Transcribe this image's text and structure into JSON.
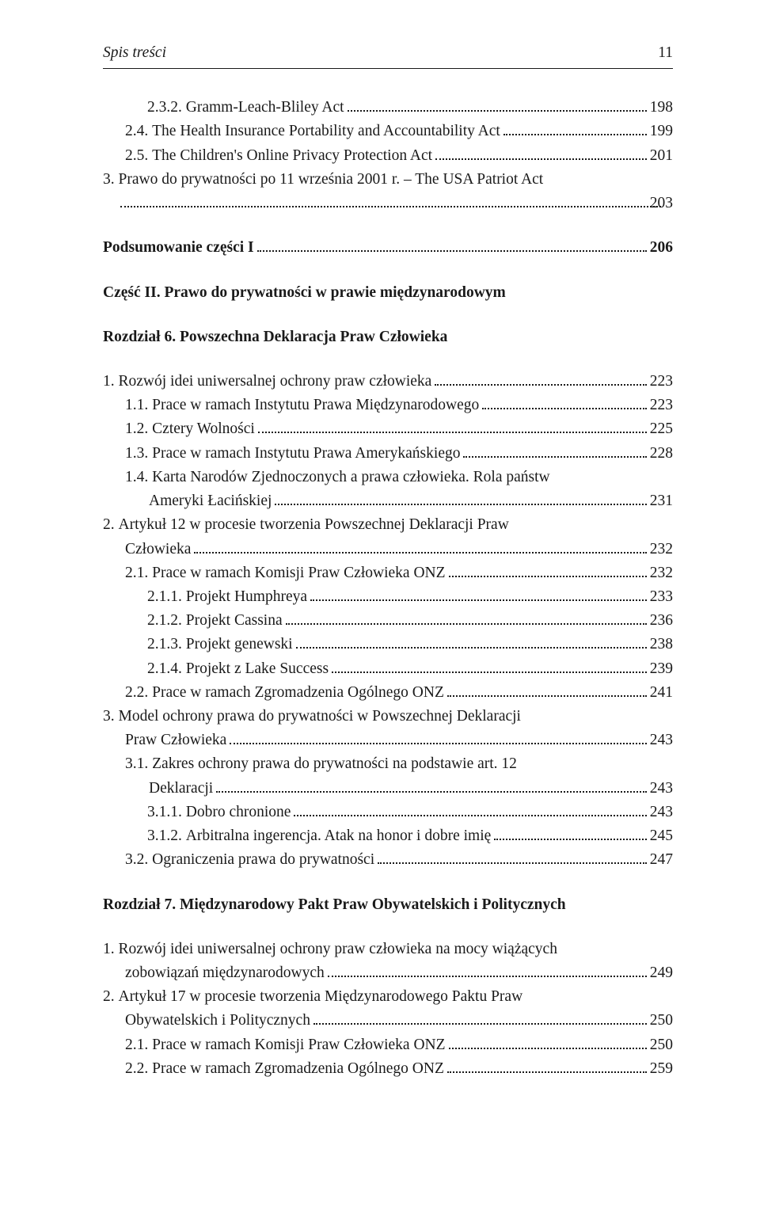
{
  "running_head": {
    "title": "Spis treści",
    "page": "11"
  },
  "top": [
    {
      "num": "2.3.2.",
      "text": "Gramm-Leach-Bliley Act",
      "pg": "198",
      "indent": 1
    },
    {
      "num": "2.4.",
      "text": "The Health Insurance Portability and Accountability Act",
      "pg": "199",
      "indent": 0
    },
    {
      "num": "2.5.",
      "text": "The Children's Online Privacy Protection Act",
      "pg": "201",
      "indent": 0
    }
  ],
  "line3": {
    "num": "3.",
    "text1": "Prawo do prywatności po 11 września 2001 r. – The USA Patriot Act",
    "pg": "203"
  },
  "summary": {
    "label": "Podsumowanie części I",
    "pg": "206"
  },
  "part2": {
    "label": "Część II.",
    "title": "Prawo do prywatności w prawie międzynarodowym"
  },
  "ch6": {
    "label": "Rozdział 6.",
    "title": "Powszechna Deklaracja Praw Człowieka"
  },
  "ch6_items": [
    {
      "num": "1.",
      "text": "Rozwój idei uniwersalnej ochrony praw człowieka",
      "pg": "223",
      "indent": 0,
      "hang": true
    },
    {
      "num": "1.1.",
      "text": "Prace w ramach Instytutu Prawa Międzynarodowego",
      "pg": "223",
      "indent": 0
    },
    {
      "num": "1.2.",
      "text": "Cztery Wolności",
      "pg": "225",
      "indent": 0
    },
    {
      "num": "1.3.",
      "text": "Prace w ramach Instytutu Prawa Amerykańskiego",
      "pg": "228",
      "indent": 0
    }
  ],
  "ch6_14": {
    "num": "1.4.",
    "text1": "Karta Narodów Zjednoczonych a prawa człowieka. Rola państw",
    "text2": "Ameryki Łacińskiej",
    "pg": "231"
  },
  "ch6_2": {
    "num": "2.",
    "text1": "Artykuł 12 w procesie tworzenia Powszechnej Deklaracji Praw",
    "text2": "Człowieka",
    "pg": "232"
  },
  "ch6_2_items": [
    {
      "num": "2.1.",
      "text": "Prace w ramach Komisji Praw Człowieka ONZ",
      "pg": "232",
      "indent": 0
    },
    {
      "num": "2.1.1.",
      "text": "Projekt Humphreya",
      "pg": "233",
      "indent": 1
    },
    {
      "num": "2.1.2.",
      "text": "Projekt Cassina",
      "pg": "236",
      "indent": 1
    },
    {
      "num": "2.1.3.",
      "text": "Projekt genewski",
      "pg": "238",
      "indent": 1
    },
    {
      "num": "2.1.4.",
      "text": "Projekt z Lake Success",
      "pg": "239",
      "indent": 1
    },
    {
      "num": "2.2.",
      "text": "Prace w ramach Zgromadzenia Ogólnego ONZ",
      "pg": "241",
      "indent": 0
    }
  ],
  "ch6_3": {
    "num": "3.",
    "text1": "Model ochrony prawa do prywatności w Powszechnej Deklaracji",
    "text2": "Praw Człowieka",
    "pg": "243"
  },
  "ch6_31": {
    "num": "3.1.",
    "text1": "Zakres ochrony prawa do prywatności na podstawie art. 12",
    "text2": "Deklaracji",
    "pg": "243"
  },
  "ch6_3_items": [
    {
      "num": "3.1.1.",
      "text": "Dobro chronione",
      "pg": "243",
      "indent": 1
    },
    {
      "num": "3.1.2.",
      "text": "Arbitralna ingerencja. Atak na honor i dobre imię",
      "pg": "245",
      "indent": 1
    },
    {
      "num": "3.2.",
      "text": "Ograniczenia prawa do prywatności",
      "pg": "247",
      "indent": 0
    }
  ],
  "ch7": {
    "label": "Rozdział 7.",
    "title": "Międzynarodowy Pakt Praw Obywatelskich i Politycznych"
  },
  "ch7_1": {
    "num": "1.",
    "text1": "Rozwój idei uniwersalnej ochrony praw człowieka na mocy wiążących",
    "text2": "zobowiązań międzynarodowych",
    "pg": "249"
  },
  "ch7_2": {
    "num": "2.",
    "text1": "Artykuł 17 w procesie tworzenia Międzynarodowego Paktu Praw",
    "text2": "Obywatelskich i Politycznych",
    "pg": "250"
  },
  "ch7_items": [
    {
      "num": "2.1.",
      "text": "Prace w ramach Komisji Praw Człowieka ONZ",
      "pg": "250",
      "indent": 0
    },
    {
      "num": "2.2.",
      "text": "Prace w ramach Zgromadzenia Ogólnego ONZ",
      "pg": "259",
      "indent": 0
    }
  ]
}
